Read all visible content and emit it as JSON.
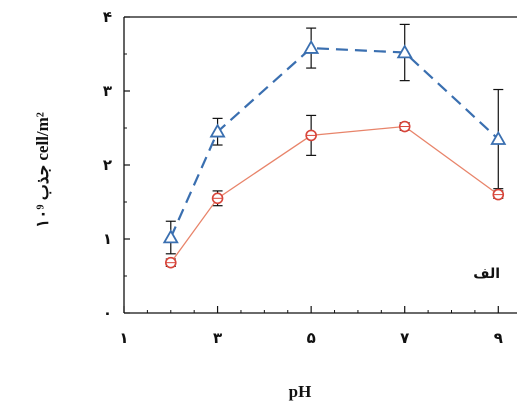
{
  "chart_data": {
    "type": "line",
    "x": [
      2,
      3,
      5,
      7,
      9
    ],
    "x_tick_labels": [
      "۱",
      "۳",
      "۵",
      "۷",
      "۹"
    ],
    "x_ticks": [
      1,
      3,
      5,
      7,
      9
    ],
    "xlim": [
      1,
      9.4
    ],
    "y_tick_labels": [
      "۰",
      "۱",
      "۲",
      "۳",
      "۴"
    ],
    "y_ticks": [
      0,
      1,
      2,
      3,
      4
    ],
    "ylim": [
      0,
      4
    ],
    "xlabel": "pH",
    "ylabel": "جذب ۱۰⁹ cell/m²",
    "annotation": "الف",
    "grid": false,
    "series": [
      {
        "style": "dashed",
        "marker": "triangle",
        "color": "#3a6fb0",
        "values": [
          1.02,
          2.45,
          3.58,
          3.52,
          2.35
        ],
        "errors": [
          0.22,
          0.18,
          0.27,
          0.38,
          0.67
        ]
      },
      {
        "style": "solid",
        "marker": "circle",
        "color": "#e8846a",
        "marker_color": "#d8453a",
        "values": [
          0.68,
          1.55,
          2.4,
          2.52,
          1.6
        ],
        "errors": [
          0.05,
          0.1,
          0.27,
          0.05,
          0.05
        ]
      }
    ]
  }
}
